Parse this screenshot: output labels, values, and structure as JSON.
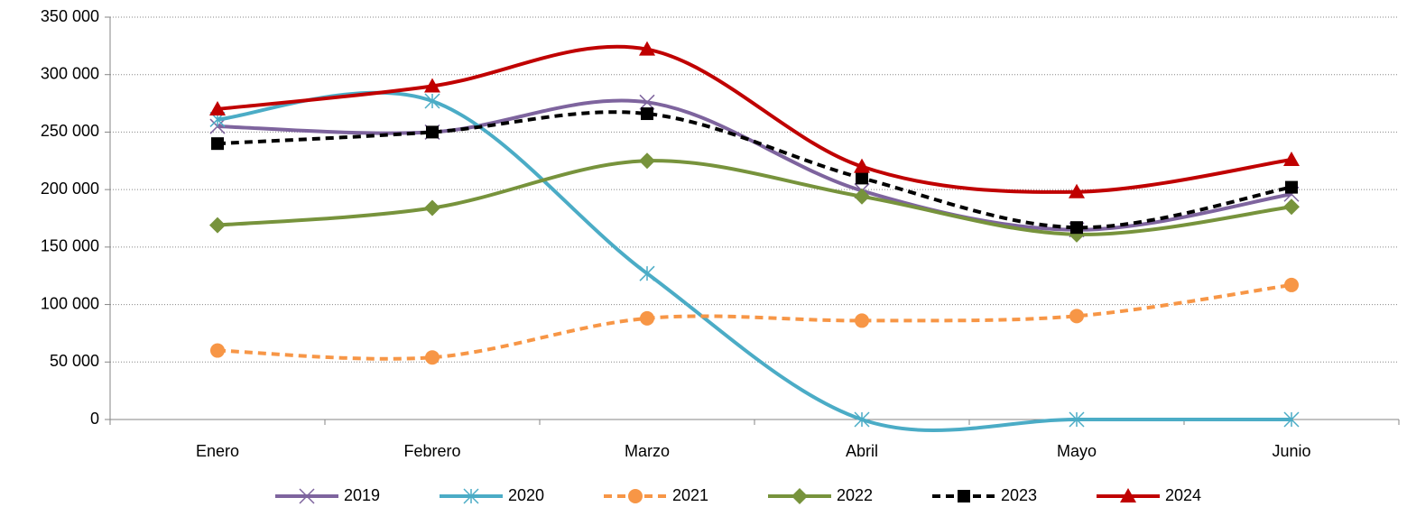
{
  "chart_data": {
    "type": "line",
    "categories": [
      "Enero",
      "Febrero",
      "Marzo",
      "Abril",
      "Mayo",
      "Junio"
    ],
    "ylim": [
      0,
      350000
    ],
    "yticks": [
      {
        "value": 0,
        "label": "0"
      },
      {
        "value": 50000,
        "label": "50 000"
      },
      {
        "value": 100000,
        "label": "100 000"
      },
      {
        "value": 150000,
        "label": "150 000"
      },
      {
        "value": 200000,
        "label": "200 000"
      },
      {
        "value": 250000,
        "label": "250 000"
      },
      {
        "value": 300000,
        "label": "300 000"
      },
      {
        "value": 350000,
        "label": "350 000"
      }
    ],
    "grid": true,
    "smooth": true,
    "legend": "bottom",
    "series": [
      {
        "name": "2019",
        "color": "#7e649e",
        "marker": "x",
        "dash": false,
        "values": [
          255000,
          250000,
          276000,
          199000,
          165000,
          196000
        ]
      },
      {
        "name": "2020",
        "color": "#4bacc6",
        "marker": "star",
        "dash": false,
        "values": [
          261000,
          277000,
          127000,
          0,
          0,
          0
        ]
      },
      {
        "name": "2021",
        "color": "#f79646",
        "marker": "circle",
        "dash": true,
        "values": [
          60000,
          54000,
          88000,
          86000,
          90000,
          117000
        ]
      },
      {
        "name": "2022",
        "color": "#77933c",
        "marker": "diamond",
        "dash": false,
        "values": [
          169000,
          184000,
          225000,
          194000,
          161000,
          185000
        ]
      },
      {
        "name": "2023",
        "color": "#000000",
        "marker": "square",
        "dash": true,
        "values": [
          240000,
          250000,
          266000,
          210000,
          167000,
          202000
        ]
      },
      {
        "name": "2024",
        "color": "#c00000",
        "marker": "triangle",
        "dash": false,
        "values": [
          270000,
          290000,
          322000,
          220000,
          198000,
          226000
        ]
      }
    ]
  }
}
